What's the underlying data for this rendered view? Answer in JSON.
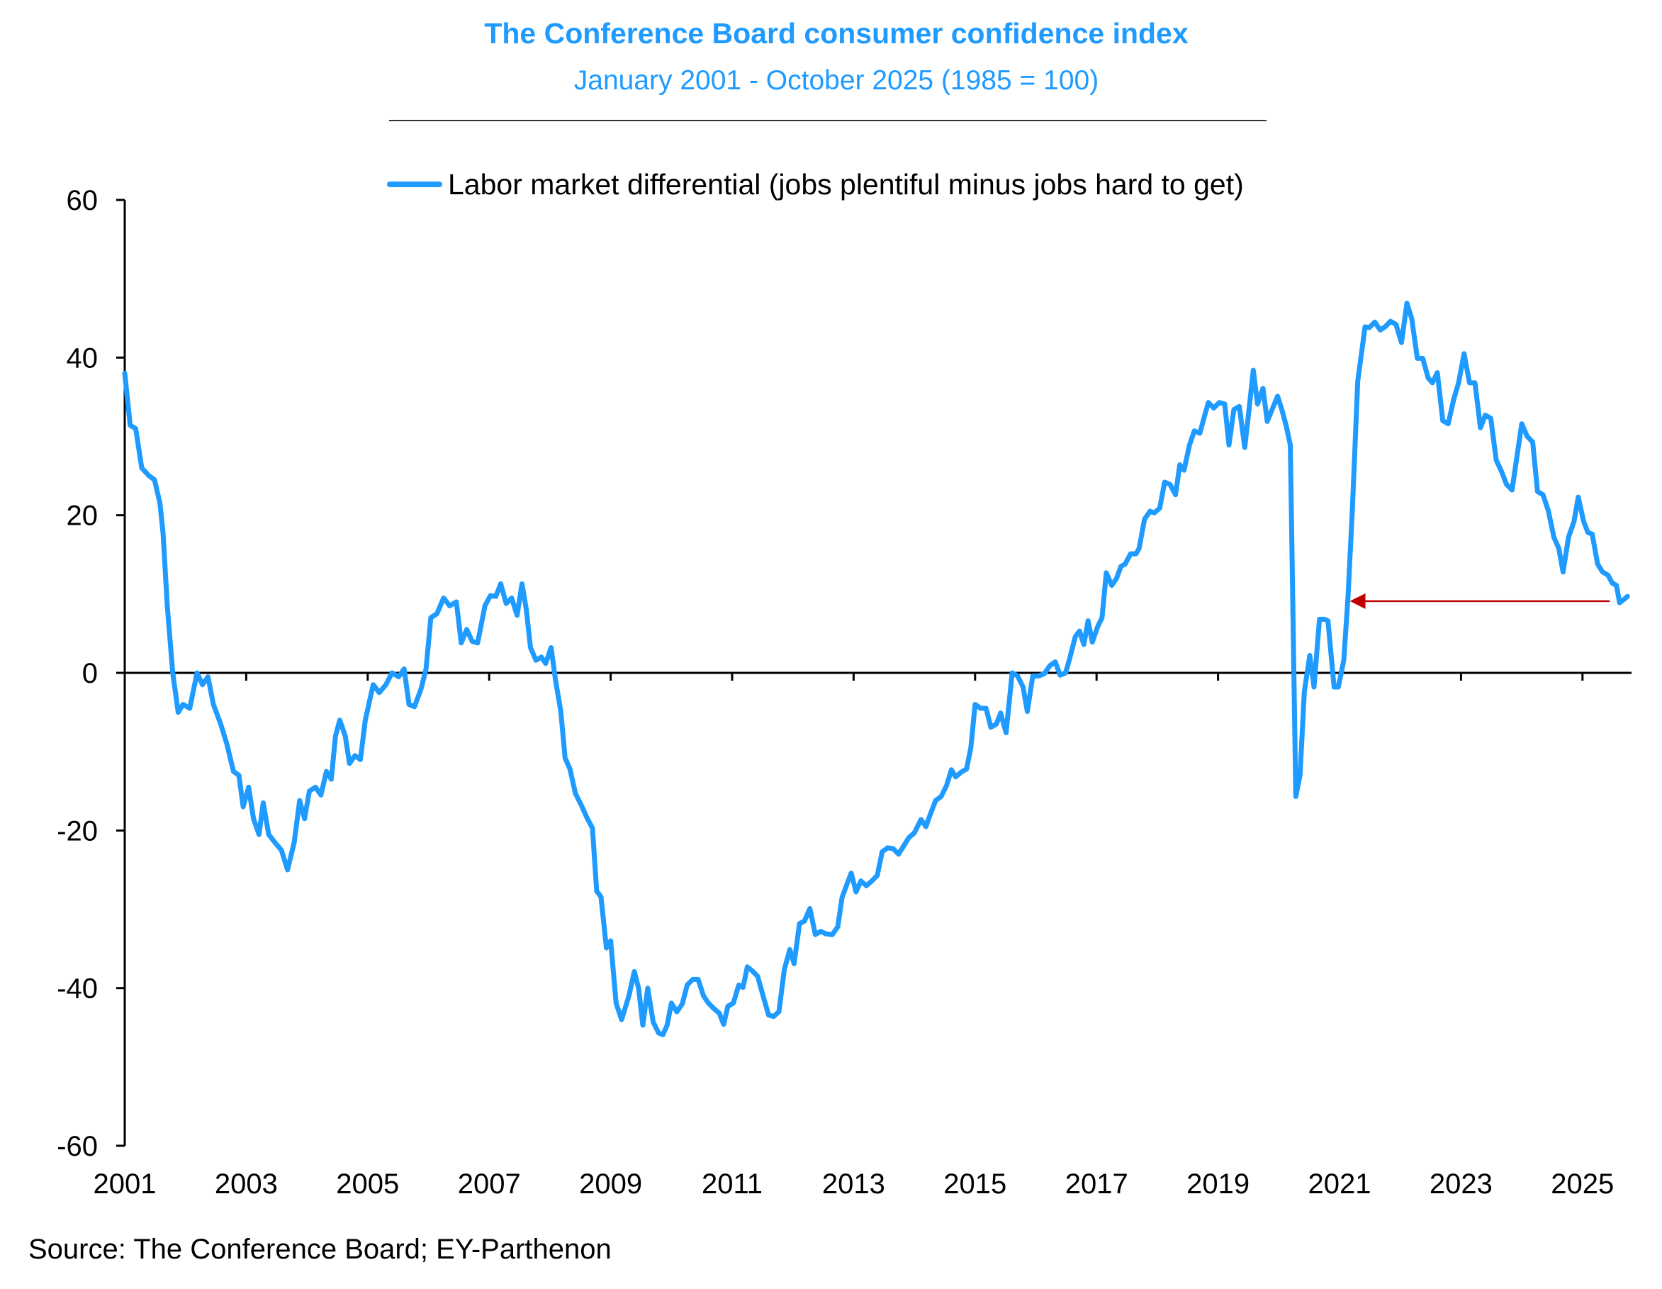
{
  "header": {
    "title": "The Conference Board consumer confidence index",
    "subtitle": "January 2001 - October 2025 (1985 = 100)"
  },
  "source": "Source: The Conference Board; EY-Parthenon",
  "colors": {
    "title": "#1F9BFF",
    "series": "#1F9BFF",
    "arrow": "#C00000",
    "axis": "#000000"
  },
  "chart_data": {
    "type": "line",
    "title": "The Conference Board consumer confidence index",
    "subtitle": "January 2001 - October 2025 (1985 = 100)",
    "xlabel": "",
    "ylabel": "",
    "xlim": [
      2001,
      2025.85
    ],
    "ylim": [
      -60,
      60
    ],
    "yticks": [
      60,
      40,
      20,
      0,
      -20,
      -40,
      -60
    ],
    "xticks": [
      2001,
      2003,
      2005,
      2007,
      2009,
      2011,
      2013,
      2015,
      2017,
      2019,
      2021,
      2023,
      2025
    ],
    "xtick_labels": [
      "2001",
      "2003",
      "2005",
      "2007",
      "2009",
      "2011",
      "2013",
      "2015",
      "2017",
      "2019",
      "2021",
      "2023",
      "2025"
    ],
    "ytick_labels": [
      "60",
      "40",
      "20",
      "0",
      "-20",
      "-40",
      "-60"
    ],
    "grid": false,
    "legend_position": "top-center",
    "series": [
      {
        "name": "Labor market differential (jobs plentiful minus jobs hard to get)",
        "x": [
          2001.0,
          2001.09,
          2001.18,
          2001.28,
          2001.4,
          2001.49,
          2001.58,
          2001.63,
          2001.7,
          2001.79,
          2001.88,
          2001.96,
          2002.07,
          2002.19,
          2002.28,
          2002.37,
          2002.46,
          2002.58,
          2002.68,
          2002.79,
          2002.88,
          2002.95,
          2003.04,
          2003.12,
          2003.21,
          2003.28,
          2003.37,
          2003.47,
          2003.58,
          2003.68,
          2003.79,
          2003.88,
          2003.96,
          2004.04,
          2004.14,
          2004.23,
          2004.32,
          2004.4,
          2004.47,
          2004.54,
          2004.63,
          2004.7,
          2004.79,
          2004.88,
          2004.96,
          2005.09,
          2005.19,
          2005.3,
          2005.4,
          2005.51,
          2005.6,
          2005.68,
          2005.77,
          2005.88,
          2005.96,
          2006.04,
          2006.14,
          2006.25,
          2006.35,
          2006.46,
          2006.54,
          2006.63,
          2006.72,
          2006.81,
          2006.93,
          2007.02,
          2007.11,
          2007.19,
          2007.28,
          2007.37,
          2007.46,
          2007.54,
          2007.61,
          2007.68,
          2007.77,
          2007.86,
          2007.93,
          2008.02,
          2008.09,
          2008.18,
          2008.25,
          2008.33,
          2008.42,
          2008.53,
          2008.61,
          2008.7,
          2008.77,
          2008.84,
          2008.93,
          2009.0,
          2009.09,
          2009.18,
          2009.3,
          2009.39,
          2009.46,
          2009.53,
          2009.61,
          2009.7,
          2009.79,
          2009.86,
          2009.93,
          2010.0,
          2010.09,
          2010.18,
          2010.26,
          2010.35,
          2010.44,
          2010.53,
          2010.61,
          2010.7,
          2010.79,
          2010.86,
          2010.93,
          2011.02,
          2011.11,
          2011.18,
          2011.25,
          2011.33,
          2011.42,
          2011.51,
          2011.6,
          2011.68,
          2011.77,
          2011.86,
          2011.95,
          2012.02,
          2012.11,
          2012.19,
          2012.28,
          2012.37,
          2012.46,
          2012.54,
          2012.65,
          2012.74,
          2012.81,
          2012.89,
          2012.96,
          2013.04,
          2013.12,
          2013.21,
          2013.3,
          2013.39,
          2013.47,
          2013.56,
          2013.65,
          2013.74,
          2013.82,
          2013.91,
          2014.0,
          2014.11,
          2014.19,
          2014.26,
          2014.35,
          2014.44,
          2014.53,
          2014.61,
          2014.68,
          2014.77,
          2014.86,
          2014.93,
          2015.0,
          2015.09,
          2015.18,
          2015.26,
          2015.35,
          2015.42,
          2015.51,
          2015.61,
          2015.7,
          2015.79,
          2015.86,
          2015.95,
          2016.05,
          2016.14,
          2016.23,
          2016.32,
          2016.4,
          2016.49,
          2016.56,
          2016.65,
          2016.72,
          2016.79,
          2016.86,
          2016.93,
          2017.02,
          2017.09,
          2017.16,
          2017.25,
          2017.33,
          2017.4,
          2017.47,
          2017.56,
          2017.65,
          2017.7,
          2017.79,
          2017.88,
          2017.95,
          2018.04,
          2018.12,
          2018.21,
          2018.3,
          2018.37,
          2018.44,
          2018.53,
          2018.61,
          2018.7,
          2018.77,
          2018.84,
          2018.93,
          2019.02,
          2019.11,
          2019.18,
          2019.26,
          2019.35,
          2019.44,
          2019.51,
          2019.58,
          2019.65,
          2019.74,
          2019.81,
          2019.89,
          2019.98,
          2020.05,
          2020.12,
          2020.19,
          2020.28,
          2020.35,
          2020.42,
          2020.51,
          2020.58,
          2020.67,
          2020.75,
          2020.81,
          2020.91,
          2020.98,
          2021.07,
          2021.14,
          2021.21,
          2021.3,
          2021.42,
          2021.49,
          2021.58,
          2021.67,
          2021.75,
          2021.84,
          2021.93,
          2022.02,
          2022.11,
          2022.19,
          2022.28,
          2022.37,
          2022.46,
          2022.53,
          2022.61,
          2022.7,
          2022.79,
          2022.88,
          2022.96,
          2023.05,
          2023.14,
          2023.23,
          2023.32,
          2023.4,
          2023.49,
          2023.58,
          2023.67,
          2023.75,
          2023.84,
          2024.0,
          2024.09,
          2024.18,
          2024.26,
          2024.35,
          2024.44,
          2024.53,
          2024.61,
          2024.68,
          2024.77,
          2024.86,
          2024.93,
          2025.02,
          2025.09,
          2025.16,
          2025.25,
          2025.33,
          2025.42,
          2025.49,
          2025.56,
          2025.61,
          2025.68,
          2025.74
        ],
        "values": [
          38.0,
          31.4,
          31.0,
          26.0,
          25.0,
          24.5,
          21.5,
          17.8,
          8.5,
          0.0,
          -5.0,
          -4.0,
          -4.5,
          0.0,
          -1.5,
          -0.5,
          -4.0,
          -6.5,
          -9.0,
          -12.5,
          -13.0,
          -17.0,
          -14.5,
          -18.5,
          -20.5,
          -16.5,
          -20.5,
          -21.5,
          -22.5,
          -25.0,
          -21.5,
          -16.2,
          -18.5,
          -15.0,
          -14.5,
          -15.5,
          -12.5,
          -13.5,
          -8.0,
          -6.0,
          -8.0,
          -11.5,
          -10.5,
          -11.0,
          -6.0,
          -1.5,
          -2.5,
          -1.5,
          0.0,
          -0.5,
          0.5,
          -4.0,
          -4.3,
          -2.0,
          0.5,
          7.0,
          7.5,
          9.5,
          8.5,
          9.0,
          3.8,
          5.5,
          4.0,
          3.8,
          8.5,
          9.8,
          9.7,
          11.3,
          8.8,
          9.5,
          7.3,
          11.3,
          8.1,
          3.2,
          1.6,
          2.0,
          1.2,
          3.2,
          -0.8,
          -4.9,
          -10.8,
          -12.2,
          -15.3,
          -17.0,
          -18.4,
          -19.7,
          -27.7,
          -28.4,
          -34.9,
          -34.0,
          -41.9,
          -44.0,
          -41.0,
          -37.9,
          -40.0,
          -44.7,
          -40.0,
          -44.3,
          -45.7,
          -45.9,
          -44.7,
          -41.9,
          -43.0,
          -42.0,
          -39.6,
          -38.9,
          -38.9,
          -41.0,
          -41.9,
          -42.6,
          -43.2,
          -44.6,
          -42.3,
          -41.9,
          -39.6,
          -39.9,
          -37.3,
          -37.8,
          -38.5,
          -41.0,
          -43.4,
          -43.6,
          -43.0,
          -37.6,
          -35.1,
          -36.9,
          -31.8,
          -31.5,
          -29.9,
          -33.2,
          -32.8,
          -33.1,
          -33.2,
          -32.2,
          -28.5,
          -26.8,
          -25.4,
          -27.8,
          -26.4,
          -27.0,
          -26.4,
          -25.7,
          -22.7,
          -22.2,
          -22.3,
          -23.0,
          -22.0,
          -20.9,
          -20.3,
          -18.6,
          -19.5,
          -18.0,
          -16.2,
          -15.7,
          -14.3,
          -12.3,
          -13.2,
          -12.6,
          -12.2,
          -9.5,
          -4.0,
          -4.5,
          -4.5,
          -6.9,
          -6.5,
          -5.1,
          -7.6,
          0.0,
          -0.4,
          -1.8,
          -4.9,
          -0.4,
          -0.4,
          -0.1,
          0.9,
          1.4,
          -0.3,
          0.0,
          1.9,
          4.6,
          5.3,
          3.6,
          6.6,
          3.9,
          5.9,
          7.0,
          12.7,
          11.1,
          12.0,
          13.5,
          13.8,
          15.1,
          15.1,
          15.8,
          19.5,
          20.5,
          20.3,
          20.9,
          24.2,
          23.9,
          22.6,
          26.4,
          25.7,
          28.9,
          30.7,
          30.4,
          32.4,
          34.3,
          33.6,
          34.3,
          34.1,
          28.9,
          33.4,
          33.8,
          28.6,
          33.4,
          38.4,
          34.1,
          36.1,
          31.9,
          33.4,
          35.1,
          33.4,
          31.4,
          28.9,
          -15.7,
          -13.0,
          -2.4,
          2.2,
          -1.8,
          6.8,
          6.8,
          6.6,
          -1.8,
          -1.8,
          1.6,
          9.7,
          20.5,
          37.0,
          43.9,
          43.8,
          44.5,
          43.5,
          43.9,
          44.6,
          44.2,
          41.9,
          46.9,
          44.9,
          39.9,
          39.9,
          37.4,
          36.8,
          38.1,
          32.0,
          31.6,
          34.7,
          36.8,
          40.5,
          36.8,
          36.8,
          31.1,
          32.7,
          32.3,
          27.0,
          25.5,
          23.9,
          23.2,
          31.6,
          30.0,
          29.3,
          23.0,
          22.6,
          20.5,
          17.2,
          15.8,
          12.8,
          17.2,
          19.2,
          22.3,
          19.2,
          17.8,
          17.6,
          13.8,
          12.8,
          12.4,
          11.4,
          11.1,
          8.9,
          9.3,
          9.7
        ]
      }
    ],
    "annotations": [
      {
        "type": "arrow",
        "description": "Horizontal arrow from latest value back to the matching level in early 2021",
        "from": {
          "x": 2025.45,
          "y": 9.1
        },
        "to": {
          "x": 2021.17,
          "y": 9.1
        },
        "color": "#C00000"
      }
    ]
  }
}
